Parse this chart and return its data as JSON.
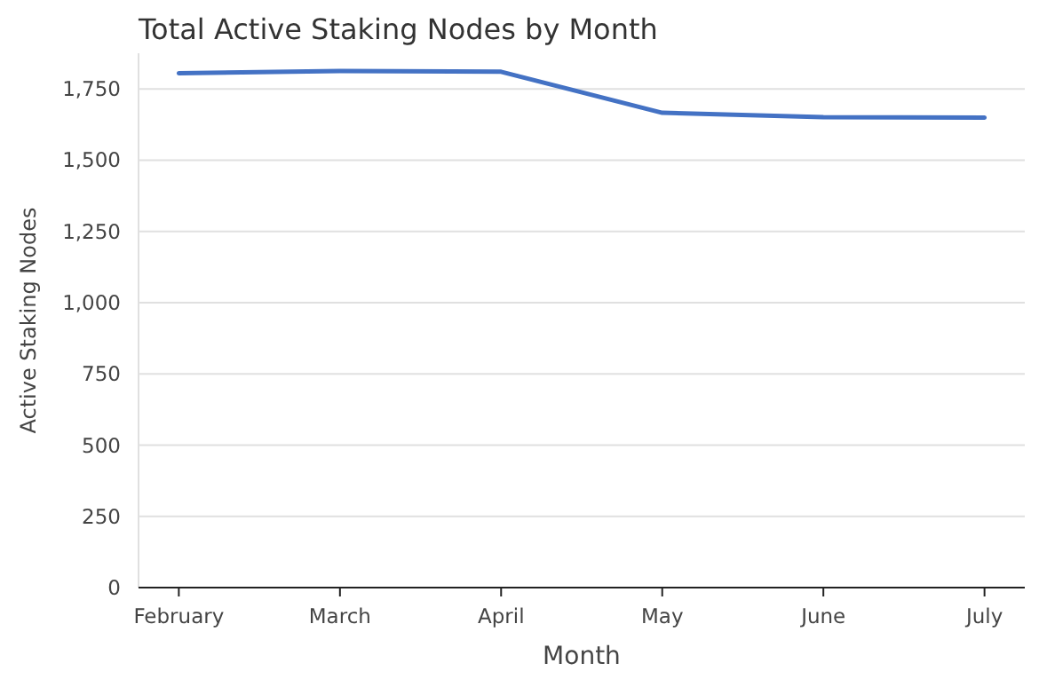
{
  "chart_data": {
    "type": "line",
    "title": "Total Active Staking Nodes by Month",
    "xlabel": "Month",
    "ylabel": "Active Staking Nodes",
    "categories": [
      "February",
      "March",
      "April",
      "May",
      "June",
      "July"
    ],
    "series": [
      {
        "color": "#4472c4",
        "values": [
          1805,
          1813,
          1810,
          1666,
          1651,
          1649
        ]
      }
    ],
    "ylim": [
      0,
      1875
    ],
    "yticks": [
      0,
      250,
      500,
      750,
      {
        "value": 1000,
        "label": "1,000"
      },
      {
        "value": 1250,
        "label": "1,250"
      },
      {
        "value": 1500,
        "label": "1,500"
      },
      {
        "value": 1750,
        "label": "1,750"
      }
    ],
    "grid": "y"
  }
}
